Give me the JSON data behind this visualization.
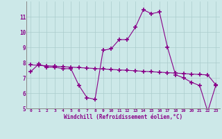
{
  "xlabel": "Windchill (Refroidissement éolien,°C)",
  "x": [
    0,
    1,
    2,
    3,
    4,
    5,
    6,
    7,
    8,
    9,
    10,
    11,
    12,
    13,
    14,
    15,
    16,
    17,
    18,
    19,
    20,
    21,
    22,
    23
  ],
  "y_main": [
    7.4,
    7.9,
    7.7,
    7.7,
    7.6,
    7.6,
    6.5,
    5.7,
    5.6,
    8.8,
    8.9,
    9.5,
    9.5,
    10.3,
    11.45,
    11.2,
    11.3,
    9.0,
    7.2,
    7.0,
    6.7,
    6.5,
    4.8,
    6.5
  ],
  "y_trend": [
    7.85,
    7.82,
    7.79,
    7.76,
    7.73,
    7.7,
    7.67,
    7.64,
    7.61,
    7.58,
    7.55,
    7.52,
    7.49,
    7.46,
    7.43,
    7.4,
    7.37,
    7.34,
    7.31,
    7.28,
    7.25,
    7.22,
    7.19,
    6.55
  ],
  "line_color": "#880088",
  "bg_color": "#cce8e8",
  "grid_color": "#aacccc",
  "text_color": "#880088",
  "ylim": [
    5,
    12
  ],
  "yticks": [
    5,
    6,
    7,
    8,
    9,
    10,
    11
  ],
  "xlim": [
    -0.5,
    23.5
  ],
  "marker": "+",
  "markersize": 4,
  "markeredgewidth": 1.2,
  "linewidth": 0.8,
  "figsize": [
    3.2,
    2.0
  ],
  "dpi": 100
}
